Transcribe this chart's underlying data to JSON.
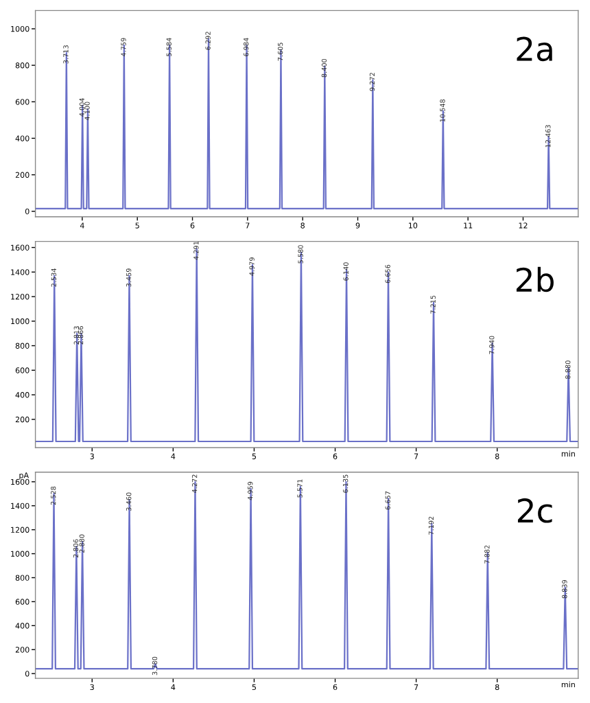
{
  "chart_data": [
    {
      "type": "line",
      "xlim": [
        3.15,
        13.0
      ],
      "xticks": [
        4,
        5,
        6,
        7,
        8,
        9,
        10,
        11,
        12
      ],
      "ylim": [
        -30,
        1100
      ],
      "yticks": [
        0,
        200,
        400,
        600,
        800,
        1000
      ],
      "grid": false,
      "series": [
        {
          "color": "#6a70c8",
          "x": [
            3.15,
            3.693,
            3.713,
            3.733,
            3.984,
            4.004,
            4.024,
            4.08,
            4.1,
            4.12,
            4.739,
            4.759,
            4.779,
            5.564,
            5.584,
            5.604,
            6.272,
            6.292,
            6.312,
            6.964,
            6.984,
            7.004,
            7.585,
            7.605,
            7.625,
            8.38,
            8.4,
            8.42,
            9.252,
            9.272,
            9.292,
            10.528,
            10.548,
            10.568,
            12.443,
            12.463,
            12.483,
            13.0
          ],
          "values": [
            15,
            15,
            870,
            15,
            15,
            580,
            15,
            15,
            560,
            15,
            15,
            910,
            15,
            15,
            910,
            15,
            15,
            945,
            15,
            15,
            910,
            15,
            15,
            885,
            15,
            15,
            795,
            15,
            15,
            720,
            15,
            15,
            550,
            15,
            15,
            410,
            15,
            15
          ]
        }
      ],
      "annotations": [
        "2a",
        {
          "text": "3.713",
          "x": 3.713,
          "y": 870
        },
        {
          "text": "4.004",
          "x": 4.004,
          "y": 580
        },
        {
          "text": "4.100",
          "x": 4.1,
          "y": 560
        },
        {
          "text": "4.759",
          "x": 4.759,
          "y": 910
        },
        {
          "text": "5.584",
          "x": 5.584,
          "y": 910
        },
        {
          "text": "6.292",
          "x": 6.292,
          "y": 945
        },
        {
          "text": "6.984",
          "x": 6.984,
          "y": 910
        },
        {
          "text": "7.605",
          "x": 7.605,
          "y": 885
        },
        {
          "text": "8.400",
          "x": 8.4,
          "y": 795
        },
        {
          "text": "9.272",
          "x": 9.272,
          "y": 720
        },
        {
          "text": "10.548",
          "x": 10.548,
          "y": 550
        },
        {
          "text": "12.463",
          "x": 12.463,
          "y": 410
        }
      ]
    },
    {
      "type": "line",
      "xlim": [
        2.3,
        9.0
      ],
      "xticks": [
        3,
        4,
        5,
        6,
        7,
        8
      ],
      "ylim": [
        -30,
        1650
      ],
      "yticks": [
        200,
        400,
        600,
        800,
        1000,
        1200,
        1400,
        1600
      ],
      "grid": false,
      "xlabel": "min",
      "series": [
        {
          "color": "#6a70c8",
          "x": [
            2.3,
            2.514,
            2.534,
            2.554,
            2.793,
            2.813,
            2.833,
            2.846,
            2.866,
            2.886,
            3.439,
            3.459,
            3.479,
            4.271,
            4.291,
            4.311,
            4.959,
            4.979,
            4.999,
            5.56,
            5.58,
            5.6,
            6.12,
            6.14,
            6.16,
            6.636,
            6.656,
            6.676,
            7.195,
            7.215,
            7.235,
            7.92,
            7.94,
            7.96,
            8.86,
            8.88,
            8.9,
            9.0
          ],
          "values": [
            20,
            20,
            1370,
            20,
            20,
            900,
            20,
            20,
            900,
            20,
            20,
            1370,
            20,
            20,
            1590,
            20,
            20,
            1460,
            20,
            20,
            1560,
            20,
            20,
            1420,
            20,
            20,
            1400,
            20,
            20,
            1150,
            20,
            20,
            820,
            20,
            20,
            620,
            20,
            20
          ]
        }
      ],
      "annotations": [
        "2b",
        {
          "text": "2.534",
          "x": 2.534,
          "y": 1370
        },
        {
          "text": "2.813",
          "x": 2.813,
          "y": 900
        },
        {
          "text": "2.866",
          "x": 2.866,
          "y": 900
        },
        {
          "text": "3.459",
          "x": 3.459,
          "y": 1370
        },
        {
          "text": "4.291",
          "x": 4.291,
          "y": 1590
        },
        {
          "text": "4.979",
          "x": 4.979,
          "y": 1460
        },
        {
          "text": "5.580",
          "x": 5.58,
          "y": 1560
        },
        {
          "text": "6.140",
          "x": 6.14,
          "y": 1420
        },
        {
          "text": "6.656",
          "x": 6.656,
          "y": 1400
        },
        {
          "text": "7.215",
          "x": 7.215,
          "y": 1150
        },
        {
          "text": "7.940",
          "x": 7.94,
          "y": 820
        },
        {
          "text": "8.880",
          "x": 8.88,
          "y": 620
        }
      ]
    },
    {
      "type": "line",
      "xlim": [
        2.3,
        9.0
      ],
      "xticks": [
        3,
        4,
        5,
        6,
        7,
        8
      ],
      "ylim": [
        -40,
        1680
      ],
      "yticks": [
        0,
        200,
        400,
        600,
        800,
        1000,
        1200,
        1400,
        1600
      ],
      "grid": false,
      "xlabel": "min",
      "ylabel": "pA",
      "series": [
        {
          "color": "#6a70c8",
          "x": [
            2.3,
            2.508,
            2.528,
            2.548,
            2.786,
            2.806,
            2.826,
            2.86,
            2.88,
            2.9,
            3.44,
            3.46,
            3.48,
            3.76,
            3.78,
            3.8,
            4.252,
            4.272,
            4.292,
            4.939,
            4.959,
            4.979,
            5.551,
            5.571,
            5.591,
            6.115,
            6.135,
            6.155,
            6.637,
            6.657,
            6.677,
            7.172,
            7.192,
            7.212,
            7.862,
            7.882,
            7.902,
            8.819,
            8.839,
            8.859,
            9.0
          ],
          "values": [
            40,
            40,
            1500,
            40,
            40,
            1060,
            40,
            40,
            1100,
            40,
            40,
            1450,
            40,
            40,
            80,
            40,
            40,
            1600,
            40,
            40,
            1540,
            40,
            40,
            1560,
            40,
            40,
            1600,
            40,
            40,
            1460,
            40,
            40,
            1250,
            40,
            40,
            1010,
            40,
            40,
            720,
            40,
            40
          ]
        }
      ],
      "annotations": [
        "2c",
        {
          "text": "2.528",
          "x": 2.528,
          "y": 1500
        },
        {
          "text": "2.806",
          "x": 2.806,
          "y": 1060
        },
        {
          "text": "2.880",
          "x": 2.88,
          "y": 1100
        },
        {
          "text": "3.460",
          "x": 3.46,
          "y": 1450
        },
        {
          "text": "3.780",
          "x": 3.78,
          "y": 80
        },
        {
          "text": "4.272",
          "x": 4.272,
          "y": 1600
        },
        {
          "text": "4.959",
          "x": 4.959,
          "y": 1540
        },
        {
          "text": "5.571",
          "x": 5.571,
          "y": 1560
        },
        {
          "text": "6.135",
          "x": 6.135,
          "y": 1600
        },
        {
          "text": "6.657",
          "x": 6.657,
          "y": 1460
        },
        {
          "text": "7.192",
          "x": 7.192,
          "y": 1250
        },
        {
          "text": "7.882",
          "x": 7.882,
          "y": 1010
        },
        {
          "text": "8.839",
          "x": 8.839,
          "y": 720
        }
      ]
    }
  ]
}
